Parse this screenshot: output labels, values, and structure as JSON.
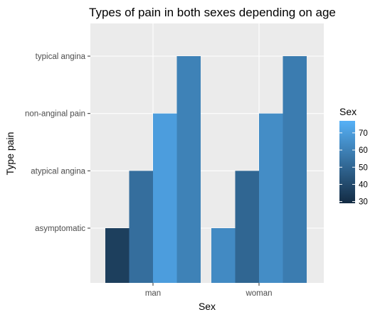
{
  "chart_data": {
    "type": "bar",
    "title": "Types of pain in both sexes depending on age",
    "xlabel": "Sex",
    "ylabel": "Type pain",
    "x_categories": [
      "man",
      "woman"
    ],
    "y_levels": [
      "asymptomatic",
      "atypical angina",
      "non-anginal pain",
      "typical angina"
    ],
    "bars": [
      {
        "sex": "man",
        "type_pain": "asymptomatic",
        "age": 36
      },
      {
        "sex": "man",
        "type_pain": "atypical angina",
        "age": 53
      },
      {
        "sex": "man",
        "type_pain": "non-anginal pain",
        "age": 70
      },
      {
        "sex": "man",
        "type_pain": "typical angina",
        "age": 60
      },
      {
        "sex": "woman",
        "type_pain": "asymptomatic",
        "age": 63
      },
      {
        "sex": "woman",
        "type_pain": "atypical angina",
        "age": 50
      },
      {
        "sex": "woman",
        "type_pain": "non-anginal pain",
        "age": 64
      },
      {
        "sex": "woman",
        "type_pain": "typical angina",
        "age": 58
      }
    ],
    "legend": {
      "title": "Sex",
      "position": "right",
      "type": "colorbar",
      "range": [
        29,
        77
      ],
      "ticks": [
        30,
        40,
        50,
        60,
        70
      ],
      "color_low": "#132B43",
      "color_high": "#56B1F7"
    },
    "grid": true,
    "panel_background": "#EBEBEB",
    "grid_color": "#FFFFFF"
  }
}
